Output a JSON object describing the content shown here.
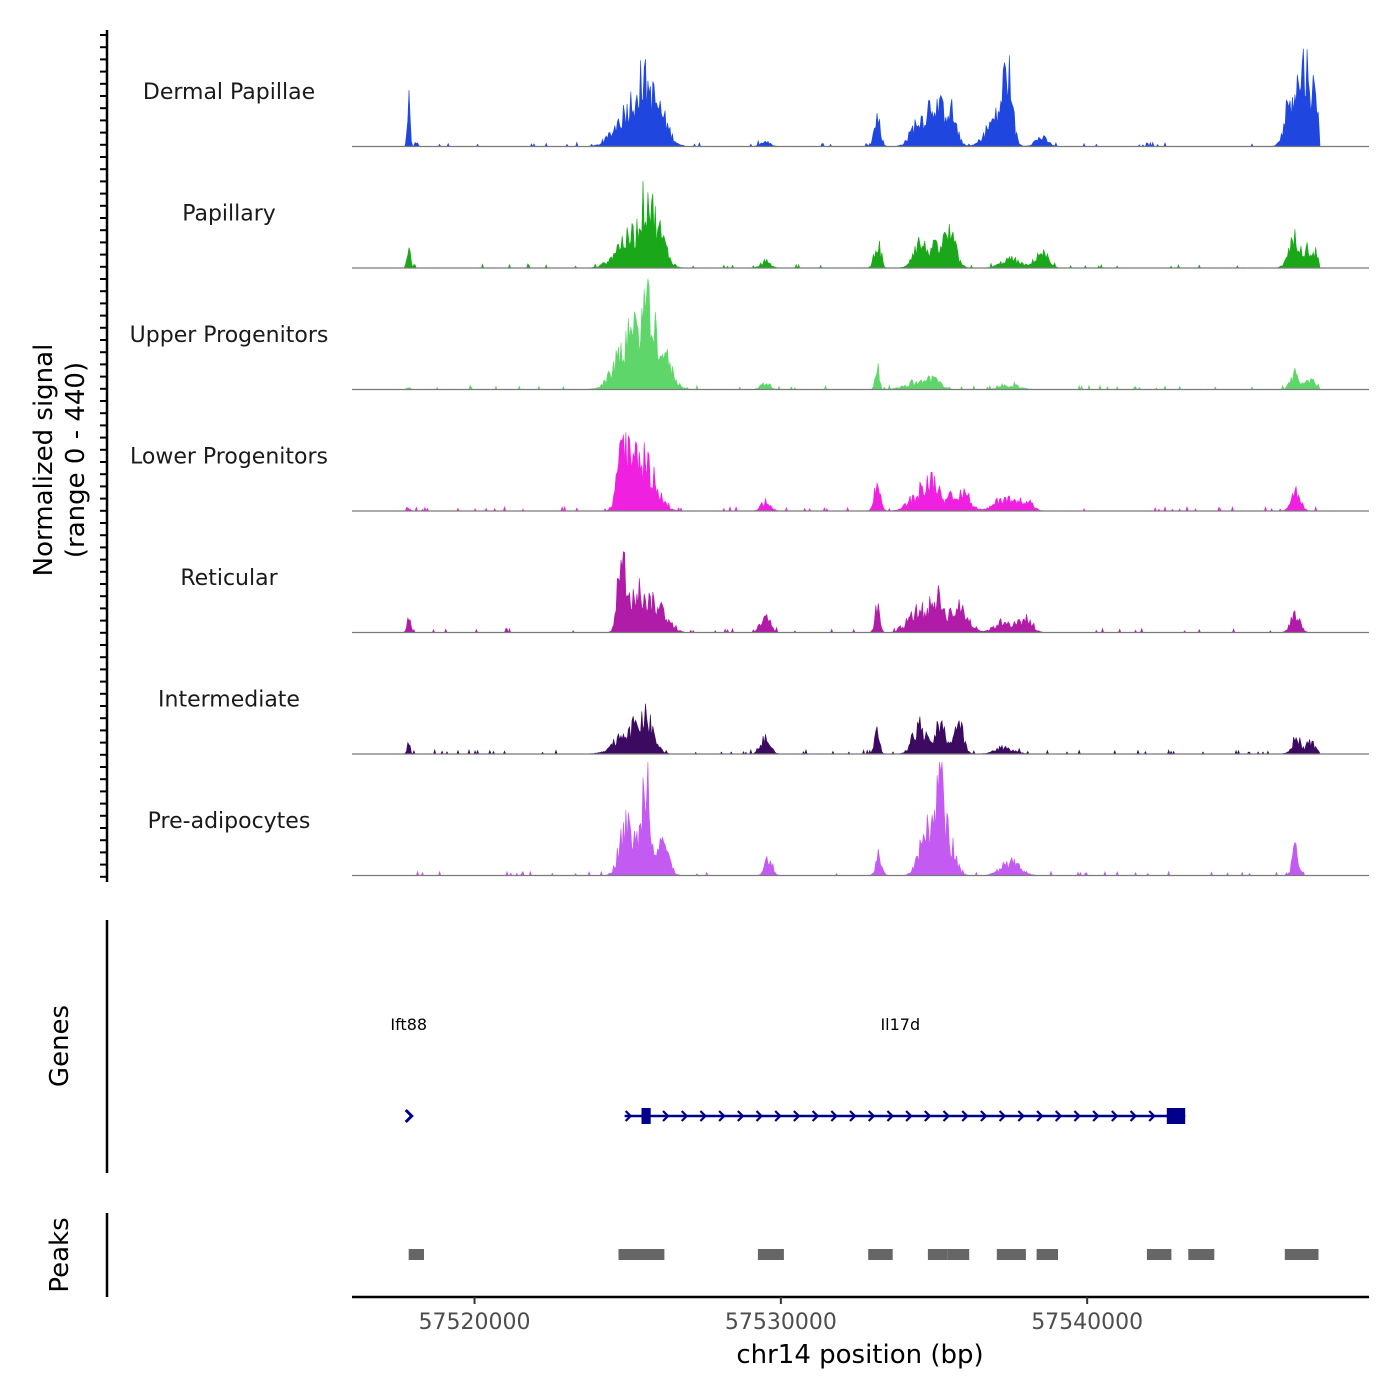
{
  "chart_data": {
    "type": "area",
    "title": "",
    "ylabel_line1": "Normalized signal",
    "ylabel_line2": "(range 0 - 440)",
    "ylim": [
      0,
      440
    ],
    "xlabel": "chr14 position (bp)",
    "xlim": [
      57516000,
      57549200
    ],
    "x_ticks": [
      57520000,
      57530000,
      57540000
    ],
    "x_tick_labels": [
      "57520000",
      "57530000",
      "57540000"
    ],
    "series": [
      {
        "name": "Dermal Papillae",
        "color": "#1f47e0",
        "peaks": [
          [
            57517850,
            230,
            40
          ],
          [
            57518100,
            20,
            50
          ],
          [
            57525000,
            150,
            400
          ],
          [
            57525500,
            190,
            250
          ],
          [
            57526000,
            150,
            300
          ],
          [
            57529500,
            20,
            150
          ],
          [
            57533150,
            130,
            100
          ],
          [
            57534500,
            110,
            250
          ],
          [
            57535000,
            190,
            200
          ],
          [
            57535500,
            170,
            200
          ],
          [
            57537400,
            300,
            150
          ],
          [
            57537000,
            120,
            300
          ],
          [
            57538500,
            40,
            200
          ],
          [
            57546700,
            260,
            200
          ],
          [
            57547100,
            300,
            150
          ],
          [
            57547400,
            200,
            150
          ]
        ]
      },
      {
        "name": "Papillary",
        "color": "#1aa81a",
        "peaks": [
          [
            57517850,
            110,
            50
          ],
          [
            57525000,
            130,
            400
          ],
          [
            57525600,
            230,
            200
          ],
          [
            57526000,
            150,
            250
          ],
          [
            57529500,
            30,
            150
          ],
          [
            57533150,
            120,
            100
          ],
          [
            57534500,
            110,
            200
          ],
          [
            57535500,
            150,
            200
          ],
          [
            57535000,
            80,
            200
          ],
          [
            57538500,
            70,
            200
          ],
          [
            57537500,
            40,
            300
          ],
          [
            57546800,
            130,
            200
          ],
          [
            57547300,
            80,
            200
          ]
        ]
      },
      {
        "name": "Upper Progenitors",
        "color": "#5ed66a",
        "peaks": [
          [
            57517850,
            10,
            50
          ],
          [
            57525000,
            200,
            400
          ],
          [
            57525600,
            260,
            250
          ],
          [
            57526100,
            160,
            300
          ],
          [
            57529500,
            30,
            150
          ],
          [
            57533150,
            130,
            60
          ],
          [
            57534500,
            30,
            400
          ],
          [
            57535000,
            40,
            200
          ],
          [
            57537500,
            20,
            300
          ],
          [
            57546800,
            70,
            150
          ],
          [
            57547300,
            40,
            150
          ]
        ]
      },
      {
        "name": "Lower Progenitors",
        "color": "#f020e0",
        "peaks": [
          [
            57517850,
            15,
            50
          ],
          [
            57524800,
            270,
            150
          ],
          [
            57525200,
            190,
            250
          ],
          [
            57525700,
            170,
            300
          ],
          [
            57529500,
            40,
            150
          ],
          [
            57533150,
            120,
            100
          ],
          [
            57534500,
            80,
            300
          ],
          [
            57535000,
            120,
            200
          ],
          [
            57535800,
            90,
            300
          ],
          [
            57537300,
            60,
            300
          ],
          [
            57538000,
            50,
            200
          ],
          [
            57546800,
            90,
            150
          ]
        ]
      },
      {
        "name": "Reticular",
        "color": "#b01ca8",
        "peaks": [
          [
            57517850,
            60,
            60
          ],
          [
            57524800,
            330,
            120
          ],
          [
            57525300,
            180,
            300
          ],
          [
            57526000,
            110,
            300
          ],
          [
            57529500,
            90,
            150
          ],
          [
            57533150,
            110,
            80
          ],
          [
            57534500,
            100,
            300
          ],
          [
            57535100,
            140,
            200
          ],
          [
            57535800,
            110,
            300
          ],
          [
            57537300,
            50,
            300
          ],
          [
            57538000,
            60,
            200
          ],
          [
            57546800,
            80,
            150
          ]
        ]
      },
      {
        "name": "Intermediate",
        "color": "#3c0a60",
        "peaks": [
          [
            57517850,
            50,
            50
          ],
          [
            57525000,
            100,
            400
          ],
          [
            57525600,
            130,
            250
          ],
          [
            57529500,
            70,
            150
          ],
          [
            57533150,
            90,
            80
          ],
          [
            57534500,
            130,
            200
          ],
          [
            57535200,
            120,
            200
          ],
          [
            57535800,
            140,
            150
          ],
          [
            57537300,
            30,
            300
          ],
          [
            57546800,
            60,
            150
          ],
          [
            57547300,
            50,
            150
          ]
        ]
      },
      {
        "name": "Pre-adipocytes",
        "color": "#c35af2",
        "peaks": [
          [
            57524900,
            180,
            200
          ],
          [
            57525400,
            140,
            300
          ],
          [
            57525600,
            380,
            100
          ],
          [
            57526100,
            170,
            200
          ],
          [
            57529600,
            80,
            120
          ],
          [
            57533200,
            100,
            100
          ],
          [
            57534800,
            200,
            250
          ],
          [
            57535200,
            380,
            120
          ],
          [
            57535500,
            150,
            200
          ],
          [
            57537500,
            60,
            300
          ],
          [
            57546800,
            120,
            100
          ]
        ]
      }
    ],
    "genes": [
      {
        "name": "Ift88",
        "label_x": 57517850,
        "start": 57517800,
        "end": 57517900,
        "strand": "+",
        "exons": []
      },
      {
        "name": "Il17d",
        "label_x": 57533900,
        "start": 57524900,
        "end": 57543200,
        "strand": "+",
        "exons": [
          [
            57525450,
            57525750
          ],
          [
            57542600,
            57543200
          ]
        ]
      }
    ],
    "peaks_track": [
      [
        57517850,
        57518350
      ],
      [
        57524700,
        57526200
      ],
      [
        57529250,
        57530100
      ],
      [
        57532850,
        57533650
      ],
      [
        57534800,
        57535450
      ],
      [
        57535450,
        57536150
      ],
      [
        57537050,
        57538000
      ],
      [
        57538350,
        57539050
      ],
      [
        57541950,
        57542750
      ],
      [
        57543300,
        57544150
      ],
      [
        57546450,
        57547550
      ]
    ]
  },
  "tracks": {
    "genes_title": "Genes",
    "peaks_title": "Peaks"
  }
}
